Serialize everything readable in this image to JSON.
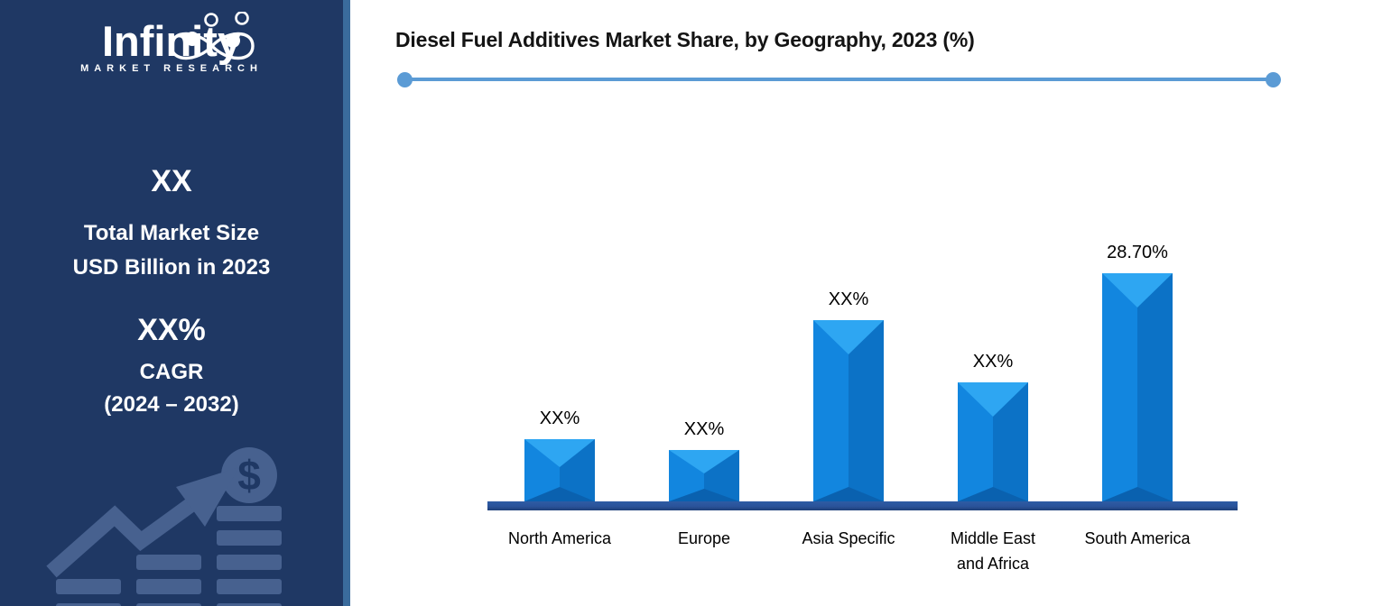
{
  "sidebar": {
    "logo": {
      "brand": "Infinity",
      "subtitle": "MARKET RESEARCH"
    },
    "stat_market_size": {
      "value": "XX",
      "label_line1": "Total Market Size",
      "label_line2": "USD Billion in 2023"
    },
    "stat_cagr": {
      "value": "XX%",
      "label": "CAGR",
      "period": "(2024 – 2032)"
    },
    "decorative_icon": "coin-stacks-growth-arrow-dollar",
    "colors": {
      "background": "#1F3864",
      "divider": "#3A6B9C",
      "graphic": "#47618F"
    }
  },
  "chart_data": {
    "type": "bar",
    "title": "Diesel Fuel Additives Market Share, by Geography, 2023 (%)",
    "categories": [
      "North America",
      "Europe",
      "Asia Specific",
      "Middle East\nand Africa",
      "South America"
    ],
    "bar_labels": [
      "XX%",
      "XX%",
      "XX%",
      "XX%",
      "28.70%"
    ],
    "values_pct": [
      null,
      null,
      null,
      null,
      28.7
    ],
    "estimated_bar_heights_pct": [
      7.8,
      6.5,
      22.8,
      15.0,
      28.7
    ],
    "xlabel": "",
    "ylabel": "",
    "ylim": [
      0,
      30
    ],
    "grid": false,
    "legend": false,
    "value_axis_hidden": true,
    "bar_color": "#1286DF",
    "bar_bevel_light": "#2EA6F2",
    "bar_bevel_right": "#0C72C6",
    "bar_bevel_dark": "#0A61AF",
    "axis_line_color": "#2A539A",
    "accent_line_color": "#5B9BD5",
    "label_color": "#000000"
  }
}
